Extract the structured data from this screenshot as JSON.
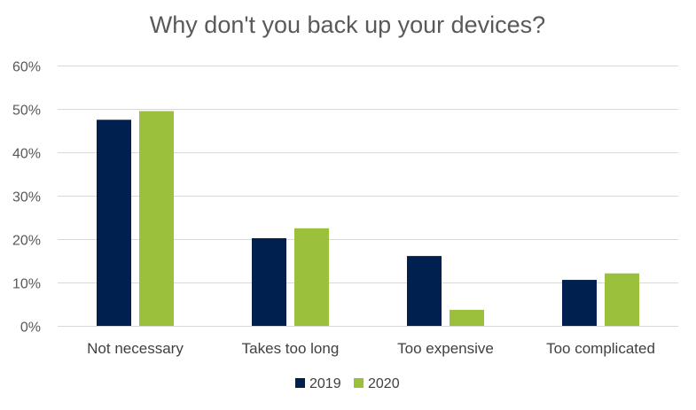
{
  "chart_data": {
    "type": "bar",
    "title": "Why don't you back up your devices?",
    "categories": [
      "Not necessary",
      "Takes too long",
      "Too expensive",
      "Too complicated"
    ],
    "series": [
      {
        "name": "2019",
        "color": "#002050",
        "values": [
          47.5,
          20.2,
          16.1,
          10.6
        ]
      },
      {
        "name": "2020",
        "color": "#9bc13c",
        "values": [
          49.5,
          22.5,
          3.7,
          12.1
        ]
      }
    ],
    "ylim": [
      0,
      60
    ],
    "yticks": [
      0,
      10,
      20,
      30,
      40,
      50,
      60
    ],
    "ytick_labels": [
      "0%",
      "10%",
      "20%",
      "30%",
      "40%",
      "50%",
      "60%"
    ],
    "xlabel": "",
    "ylabel": "",
    "grid": true,
    "legend_position": "bottom"
  }
}
